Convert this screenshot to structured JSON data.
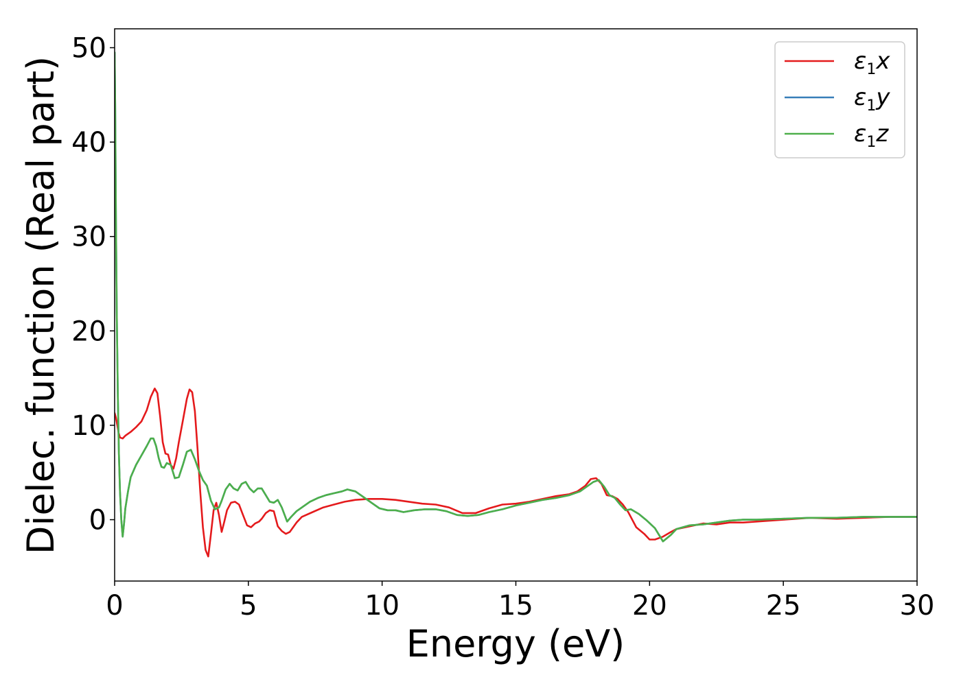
{
  "chart_data": {
    "type": "line",
    "xlabel": "Energy (eV)",
    "ylabel": "Dielec. function (Real part)",
    "xlim": [
      0,
      30
    ],
    "ylim": [
      -6.5,
      52
    ],
    "xticks": [
      0,
      5,
      10,
      15,
      20,
      25,
      30
    ],
    "yticks": [
      0,
      10,
      20,
      30,
      40,
      50
    ],
    "grid": false,
    "legend_position": "top-right",
    "series": [
      {
        "name": "ε1x",
        "symbol": "ε",
        "subscript": "1",
        "component": "x",
        "color": "#e41a1c",
        "x": [
          0,
          0.05,
          0.1,
          0.15,
          0.2,
          0.3,
          0.4,
          0.6,
          0.8,
          1.0,
          1.2,
          1.35,
          1.5,
          1.6,
          1.7,
          1.8,
          1.9,
          2.0,
          2.1,
          2.2,
          2.3,
          2.4,
          2.55,
          2.7,
          2.8,
          2.9,
          3.0,
          3.1,
          3.2,
          3.3,
          3.4,
          3.5,
          3.6,
          3.7,
          3.8,
          3.9,
          4.0,
          4.1,
          4.2,
          4.35,
          4.5,
          4.65,
          4.8,
          4.95,
          5.1,
          5.25,
          5.4,
          5.5,
          5.65,
          5.8,
          5.95,
          6.1,
          6.25,
          6.4,
          6.55,
          6.8,
          7.0,
          7.4,
          7.8,
          8.2,
          8.6,
          9.0,
          9.5,
          10.0,
          10.5,
          11.0,
          11.5,
          12.0,
          12.5,
          13.0,
          13.5,
          14.0,
          14.5,
          15.0,
          15.5,
          16.0,
          16.5,
          17.0,
          17.3,
          17.6,
          17.8,
          18.0,
          18.2,
          18.4,
          18.6,
          18.8,
          19.0,
          19.2,
          19.5,
          19.8,
          20.0,
          20.2,
          20.5,
          20.8,
          21.0,
          21.5,
          22.0,
          22.5,
          23.0,
          23.5,
          24.0,
          25.0,
          26.0,
          27.0,
          28.0,
          29.0,
          30.0
        ],
        "y": [
          11.3,
          10.8,
          10.0,
          9.2,
          8.7,
          8.6,
          8.9,
          9.3,
          9.8,
          10.4,
          11.6,
          13.0,
          13.9,
          13.4,
          11.0,
          8.2,
          7.0,
          6.9,
          5.8,
          5.4,
          6.5,
          8.2,
          10.5,
          12.8,
          13.8,
          13.5,
          11.5,
          7.5,
          3.0,
          -0.8,
          -3.2,
          -3.9,
          -1.5,
          1.0,
          1.8,
          0.5,
          -1.3,
          -0.2,
          1.0,
          1.8,
          1.9,
          1.6,
          0.5,
          -0.6,
          -0.8,
          -0.4,
          -0.2,
          0.1,
          0.7,
          1.0,
          0.9,
          -0.7,
          -1.2,
          -1.5,
          -1.3,
          -0.3,
          0.3,
          0.8,
          1.3,
          1.6,
          1.9,
          2.1,
          2.2,
          2.2,
          2.1,
          1.9,
          1.7,
          1.6,
          1.3,
          0.7,
          0.7,
          1.2,
          1.6,
          1.7,
          1.9,
          2.2,
          2.5,
          2.7,
          3.0,
          3.6,
          4.3,
          4.4,
          3.8,
          2.6,
          2.5,
          2.2,
          1.6,
          0.8,
          -0.8,
          -1.5,
          -2.1,
          -2.1,
          -1.8,
          -1.3,
          -1.0,
          -0.7,
          -0.4,
          -0.5,
          -0.3,
          -0.3,
          -0.2,
          0.0,
          0.2,
          0.1,
          0.2,
          0.3,
          0.3
        ]
      },
      {
        "name": "ε1y",
        "symbol": "ε",
        "subscript": "1",
        "component": "y",
        "color": "#377eb8",
        "x": [
          0,
          0.02,
          0.05,
          0.08,
          0.12,
          0.16,
          0.2,
          0.25,
          0.3,
          0.35,
          0.4,
          0.5,
          0.6,
          0.8,
          1.0,
          1.2,
          1.35,
          1.45,
          1.55,
          1.65,
          1.75,
          1.85,
          1.95,
          2.1,
          2.25,
          2.4,
          2.55,
          2.7,
          2.85,
          3.0,
          3.15,
          3.3,
          3.45,
          3.6,
          3.75,
          3.9,
          4.0,
          4.15,
          4.3,
          4.45,
          4.6,
          4.75,
          4.9,
          5.05,
          5.2,
          5.35,
          5.5,
          5.65,
          5.8,
          5.95,
          6.1,
          6.25,
          6.45,
          6.6,
          6.8,
          7.0,
          7.3,
          7.6,
          7.9,
          8.2,
          8.5,
          8.7,
          9.0,
          9.3,
          9.6,
          9.9,
          10.2,
          10.5,
          10.8,
          11.2,
          11.6,
          12.0,
          12.4,
          12.8,
          13.2,
          13.6,
          14.0,
          14.5,
          15.0,
          15.5,
          16.0,
          16.5,
          17.0,
          17.4,
          17.7,
          17.9,
          18.1,
          18.3,
          18.5,
          18.7,
          18.9,
          19.1,
          19.3,
          19.6,
          19.9,
          20.2,
          20.5,
          20.8,
          21.0,
          21.5,
          22.0,
          22.5,
          23.0,
          23.5,
          24.0,
          25.0,
          26.0,
          27.0,
          28.0,
          29.0,
          30.0
        ],
        "y": [
          49.5,
          44.0,
          32.0,
          22.0,
          13.0,
          7.0,
          3.0,
          0.0,
          -1.8,
          -0.5,
          1.2,
          3.0,
          4.5,
          5.8,
          6.8,
          7.8,
          8.6,
          8.6,
          7.8,
          6.5,
          5.6,
          5.5,
          6.0,
          5.8,
          4.4,
          4.5,
          5.8,
          7.2,
          7.4,
          6.4,
          5.2,
          4.2,
          3.6,
          2.0,
          1.1,
          1.3,
          2.0,
          3.2,
          3.8,
          3.3,
          3.1,
          3.8,
          4.0,
          3.3,
          2.9,
          3.3,
          3.3,
          2.6,
          1.9,
          1.8,
          2.1,
          1.3,
          -0.2,
          0.3,
          0.9,
          1.3,
          1.9,
          2.3,
          2.6,
          2.8,
          3.0,
          3.2,
          3.0,
          2.4,
          1.8,
          1.2,
          1.0,
          1.0,
          0.8,
          1.0,
          1.1,
          1.1,
          0.9,
          0.5,
          0.4,
          0.5,
          0.8,
          1.1,
          1.5,
          1.8,
          2.1,
          2.3,
          2.6,
          3.0,
          3.6,
          4.0,
          4.2,
          3.5,
          2.6,
          2.3,
          1.6,
          1.0,
          1.1,
          0.6,
          -0.1,
          -0.9,
          -2.3,
          -1.6,
          -1.0,
          -0.6,
          -0.5,
          -0.3,
          -0.1,
          0.0,
          0.0,
          0.1,
          0.2,
          0.2,
          0.3,
          0.3,
          0.3
        ]
      },
      {
        "name": "ε1z",
        "symbol": "ε",
        "subscript": "1",
        "component": "z",
        "color": "#4daf4a",
        "x": [
          0,
          0.02,
          0.05,
          0.08,
          0.12,
          0.16,
          0.2,
          0.25,
          0.3,
          0.35,
          0.4,
          0.5,
          0.6,
          0.8,
          1.0,
          1.2,
          1.35,
          1.45,
          1.55,
          1.65,
          1.75,
          1.85,
          1.95,
          2.1,
          2.25,
          2.4,
          2.55,
          2.7,
          2.85,
          3.0,
          3.15,
          3.3,
          3.45,
          3.6,
          3.75,
          3.9,
          4.0,
          4.15,
          4.3,
          4.45,
          4.6,
          4.75,
          4.9,
          5.05,
          5.2,
          5.35,
          5.5,
          5.65,
          5.8,
          5.95,
          6.1,
          6.25,
          6.45,
          6.6,
          6.8,
          7.0,
          7.3,
          7.6,
          7.9,
          8.2,
          8.5,
          8.7,
          9.0,
          9.3,
          9.6,
          9.9,
          10.2,
          10.5,
          10.8,
          11.2,
          11.6,
          12.0,
          12.4,
          12.8,
          13.2,
          13.6,
          14.0,
          14.5,
          15.0,
          15.5,
          16.0,
          16.5,
          17.0,
          17.4,
          17.7,
          17.9,
          18.1,
          18.3,
          18.5,
          18.7,
          18.9,
          19.1,
          19.3,
          19.6,
          19.9,
          20.2,
          20.5,
          20.8,
          21.0,
          21.5,
          22.0,
          22.5,
          23.0,
          23.5,
          24.0,
          25.0,
          26.0,
          27.0,
          28.0,
          29.0,
          30.0
        ],
        "y": [
          49.5,
          44.0,
          32.0,
          22.0,
          13.0,
          7.0,
          3.0,
          0.0,
          -1.8,
          -0.5,
          1.2,
          3.0,
          4.5,
          5.8,
          6.8,
          7.8,
          8.6,
          8.6,
          7.8,
          6.5,
          5.6,
          5.5,
          6.0,
          5.8,
          4.4,
          4.5,
          5.8,
          7.2,
          7.4,
          6.4,
          5.2,
          4.2,
          3.6,
          2.0,
          1.1,
          1.3,
          2.0,
          3.2,
          3.8,
          3.3,
          3.1,
          3.8,
          4.0,
          3.3,
          2.9,
          3.3,
          3.3,
          2.6,
          1.9,
          1.8,
          2.1,
          1.3,
          -0.2,
          0.3,
          0.9,
          1.3,
          1.9,
          2.3,
          2.6,
          2.8,
          3.0,
          3.2,
          3.0,
          2.4,
          1.8,
          1.2,
          1.0,
          1.0,
          0.8,
          1.0,
          1.1,
          1.1,
          0.9,
          0.5,
          0.4,
          0.5,
          0.8,
          1.1,
          1.5,
          1.8,
          2.1,
          2.3,
          2.6,
          3.0,
          3.6,
          4.0,
          4.2,
          3.5,
          2.6,
          2.3,
          1.6,
          1.0,
          1.1,
          0.6,
          -0.1,
          -0.9,
          -2.3,
          -1.6,
          -1.0,
          -0.6,
          -0.5,
          -0.3,
          -0.1,
          0.0,
          0.0,
          0.1,
          0.2,
          0.2,
          0.3,
          0.3,
          0.3
        ]
      }
    ]
  }
}
